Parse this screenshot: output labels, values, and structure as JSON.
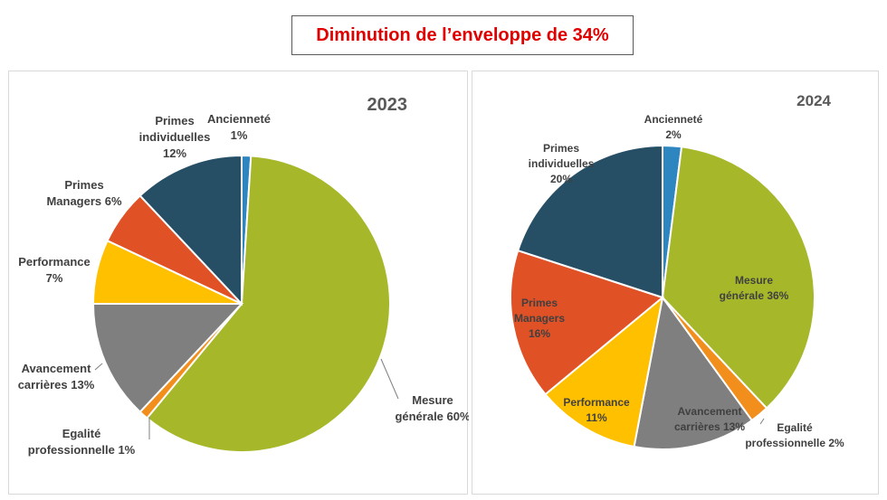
{
  "headline": "Diminution de l’enveloppe de 34%",
  "colors": {
    "anciennete": "#2e86c1",
    "mesure": "#a6b829",
    "egalite": "#f28e1c",
    "avancement": "#7f7f7f",
    "performance": "#ffc000",
    "managers": "#e05126",
    "individuelles": "#264f66"
  },
  "chart_data": [
    {
      "type": "pie",
      "title": "2023",
      "slices": [
        {
          "key": "anciennete",
          "label_lines": [
            "Ancienneté",
            "1%"
          ],
          "value": 1
        },
        {
          "key": "mesure",
          "label_lines": [
            "Mesure",
            "générale 60%"
          ],
          "value": 60
        },
        {
          "key": "egalite",
          "label_lines": [
            "Egalité",
            "professionnelle 1%"
          ],
          "value": 1
        },
        {
          "key": "avancement",
          "label_lines": [
            "Avancement",
            "carrières 13%"
          ],
          "value": 13
        },
        {
          "key": "performance",
          "label_lines": [
            "Performance",
            "7%"
          ],
          "value": 7
        },
        {
          "key": "managers",
          "label_lines": [
            "Primes",
            "Managers 6%"
          ],
          "value": 6
        },
        {
          "key": "individuelles",
          "label_lines": [
            "Primes",
            "individuelles",
            "12%"
          ],
          "value": 12
        }
      ]
    },
    {
      "type": "pie",
      "title": "2024",
      "slices": [
        {
          "key": "anciennete",
          "label_lines": [
            "Ancienneté",
            "2%"
          ],
          "value": 2
        },
        {
          "key": "mesure",
          "label_lines": [
            "Mesure",
            "générale 36%"
          ],
          "value": 36
        },
        {
          "key": "egalite",
          "label_lines": [
            "Egalité",
            "professionnelle 2%"
          ],
          "value": 2
        },
        {
          "key": "avancement",
          "label_lines": [
            "Avancement",
            "carrières 13%"
          ],
          "value": 13
        },
        {
          "key": "performance",
          "label_lines": [
            "Performance",
            "11%"
          ],
          "value": 11
        },
        {
          "key": "managers",
          "label_lines": [
            "Primes",
            "Managers",
            "16%"
          ],
          "value": 16
        },
        {
          "key": "individuelles",
          "label_lines": [
            "Primes",
            "individuelles",
            "20%"
          ],
          "value": 20
        }
      ]
    }
  ]
}
